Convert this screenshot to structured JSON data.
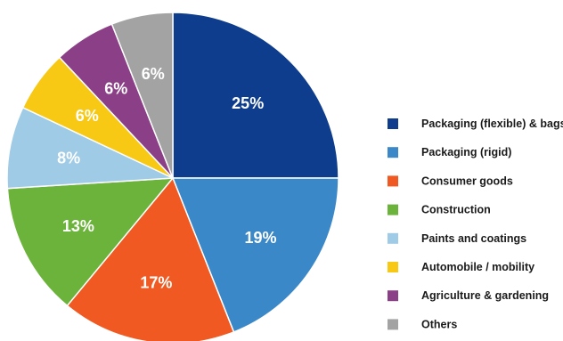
{
  "chart_data": {
    "type": "pie",
    "start_angle_deg": 0,
    "direction": "clockwise",
    "legend_position": "right",
    "slices": [
      {
        "name": "Packaging (flexible) & bags",
        "value": 25,
        "label": "25%",
        "color": "#0d3d8c"
      },
      {
        "name": "Packaging (rigid)",
        "value": 19,
        "label": "19%",
        "color": "#3b88c8"
      },
      {
        "name": "Consumer goods",
        "value": 17,
        "label": "17%",
        "color": "#f05a22"
      },
      {
        "name": "Construction",
        "value": 13,
        "label": "13%",
        "color": "#6bb33a"
      },
      {
        "name": "Paints and coatings",
        "value": 8,
        "label": "8%",
        "color": "#9fcbe6"
      },
      {
        "name": "Automobile / mobility",
        "value": 6,
        "label": "6%",
        "color": "#f7c814"
      },
      {
        "name": "Agriculture & gardening",
        "value": 6,
        "label": "6%",
        "color": "#8b3f86"
      },
      {
        "name": "Others",
        "value": 6,
        "label": "6%",
        "color": "#a3a3a3"
      }
    ]
  }
}
